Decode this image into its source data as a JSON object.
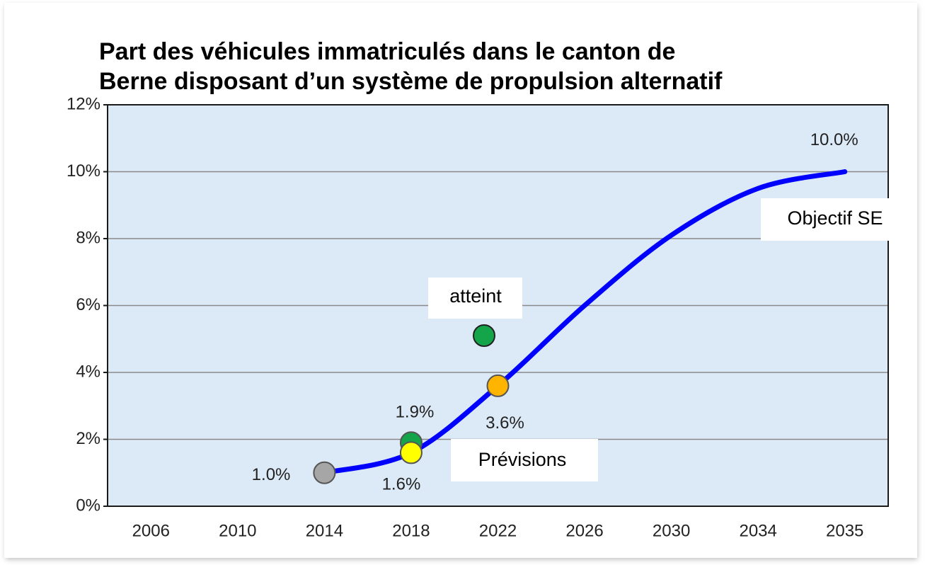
{
  "chart_data": {
    "type": "line",
    "title": [
      "Part des véhicules immatriculés dans le canton de",
      "Berne disposant d’un système de propulsion alternatif"
    ],
    "categories": [
      "2006",
      "2010",
      "2014",
      "2018",
      "2022",
      "2026",
      "2030",
      "2034",
      "2035"
    ],
    "series": [
      {
        "name": "Objectif SE",
        "color": "#0000ff",
        "kind": "line",
        "values": [
          null,
          null,
          1.0,
          1.6,
          3.6,
          6.0,
          8.1,
          9.5,
          10.0
        ],
        "value_labels": [
          null,
          null,
          null,
          null,
          null,
          null,
          null,
          null,
          "10.0%"
        ]
      },
      {
        "name": "atteint",
        "color": "#14a44a",
        "kind": "points",
        "values": [
          null,
          null,
          null,
          1.9,
          null,
          null,
          null,
          null,
          null
        ],
        "value_labels": [
          null,
          null,
          null,
          "1.9%",
          null,
          null,
          null,
          null,
          null
        ]
      },
      {
        "name": "Prévisions",
        "kind": "points",
        "colors": [
          null,
          null,
          "#a6a6a6",
          "#ffff00",
          "#ffb400",
          null,
          null,
          null,
          null
        ],
        "values": [
          null,
          null,
          1.0,
          1.6,
          3.6,
          null,
          null,
          null,
          null
        ],
        "value_labels": [
          null,
          null,
          "1.0%",
          "1.6%",
          "3.6%",
          null,
          null,
          null,
          null
        ]
      }
    ],
    "ylim": [
      0,
      12
    ],
    "yticks": [
      {
        "value": 0,
        "label": "0%"
      },
      {
        "value": 2,
        "label": "2%"
      },
      {
        "value": 4,
        "label": "4%"
      },
      {
        "value": 6,
        "label": "6%"
      },
      {
        "value": 8,
        "label": "8%"
      },
      {
        "value": 10,
        "label": "10%"
      },
      {
        "value": 12,
        "label": "12%"
      }
    ],
    "grid": true
  }
}
